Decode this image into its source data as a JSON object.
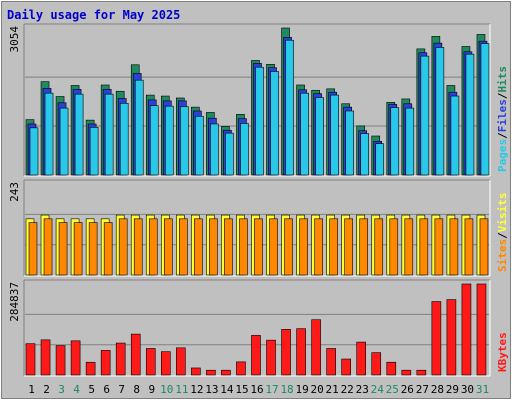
{
  "chart_data": [
    {
      "type": "bar",
      "title": "Daily usage for May 2025",
      "panel": "top",
      "ylim": [
        0,
        3054
      ],
      "max_label": "3054",
      "grid": true,
      "legend": [
        "Pages",
        "/",
        "Files",
        "/",
        "Hits"
      ],
      "legend_placement": "right, vertical",
      "series": [
        {
          "name": "Hits",
          "color": "#1e8a5e",
          "values": [
            1150,
            1940,
            1630,
            1860,
            1140,
            1870,
            1740,
            2290,
            1660,
            1640,
            1600,
            1410,
            1300,
            1010,
            1260,
            2380,
            2300,
            3054,
            1870,
            1760,
            1790,
            1480,
            1020,
            810,
            1510,
            1580,
            2620,
            2880,
            1860,
            2670,
            2920
          ]
        },
        {
          "name": "Files",
          "color": "#2b40d8",
          "values": [
            1060,
            1800,
            1500,
            1780,
            1060,
            1780,
            1590,
            2110,
            1560,
            1540,
            1540,
            1330,
            1180,
            930,
            1170,
            2320,
            2230,
            2860,
            1770,
            1690,
            1720,
            1410,
            920,
            700,
            1470,
            1480,
            2540,
            2740,
            1720,
            2560,
            2780
          ]
        },
        {
          "name": "Pages",
          "color": "#29c8e8",
          "values": [
            980,
            1700,
            1390,
            1680,
            990,
            1680,
            1490,
            1970,
            1440,
            1430,
            1420,
            1220,
            1060,
            870,
            1070,
            2240,
            2150,
            2800,
            1700,
            1610,
            1660,
            1330,
            860,
            650,
            1400,
            1390,
            2470,
            2650,
            1640,
            2510,
            2730
          ]
        }
      ]
    },
    {
      "type": "bar",
      "panel": "middle",
      "ylim": [
        0,
        243
      ],
      "max_label": "243",
      "grid": true,
      "legend": [
        "Sites",
        "/",
        "Visits"
      ],
      "legend_placement": "right, vertical",
      "series": [
        {
          "name": "Visits",
          "color": "#ffff33",
          "values": [
            150,
            160,
            150,
            150,
            150,
            150,
            160,
            160,
            160,
            160,
            160,
            160,
            160,
            160,
            160,
            160,
            160,
            160,
            160,
            160,
            160,
            160,
            160,
            160,
            160,
            160,
            160,
            160,
            160,
            160,
            160
          ]
        },
        {
          "name": "Sites",
          "color": "#ff8800",
          "values": [
            140,
            150,
            140,
            140,
            140,
            140,
            150,
            150,
            150,
            150,
            150,
            150,
            150,
            150,
            150,
            150,
            150,
            150,
            150,
            150,
            150,
            150,
            150,
            150,
            150,
            150,
            150,
            150,
            150,
            150,
            150
          ]
        }
      ]
    },
    {
      "type": "bar",
      "panel": "bottom",
      "ylim": [
        0,
        284837
      ],
      "max_label": "284837",
      "grid": true,
      "legend": [
        "KBytes"
      ],
      "legend_placement": "right, vertical",
      "series": [
        {
          "name": "KBytes",
          "color": "#ff1a1a",
          "values": [
            98000,
            110000,
            92000,
            107000,
            40000,
            77000,
            100000,
            128000,
            83000,
            73000,
            85000,
            22000,
            15000,
            15000,
            41000,
            124000,
            109000,
            143000,
            145000,
            173000,
            83000,
            50000,
            103000,
            70000,
            40000,
            15000,
            15000,
            230000,
            236000,
            284837,
            284837
          ]
        }
      ]
    }
  ],
  "x_labels": [
    "1",
    "2",
    "3",
    "4",
    "5",
    "6",
    "7",
    "8",
    "9",
    "10",
    "11",
    "12",
    "13",
    "14",
    "15",
    "16",
    "17",
    "18",
    "19",
    "20",
    "21",
    "22",
    "23",
    "24",
    "25",
    "26",
    "27",
    "28",
    "29",
    "30",
    "31"
  ],
  "weekend_days": [
    3,
    4,
    10,
    11,
    17,
    18,
    24,
    25,
    31
  ],
  "colors": {
    "background": "#c0c0c0",
    "panel": "#c0c0c0",
    "grid": "#808080",
    "title": "#0000cc",
    "label": "#000000",
    "weekend_label": "#1e8a5e"
  }
}
